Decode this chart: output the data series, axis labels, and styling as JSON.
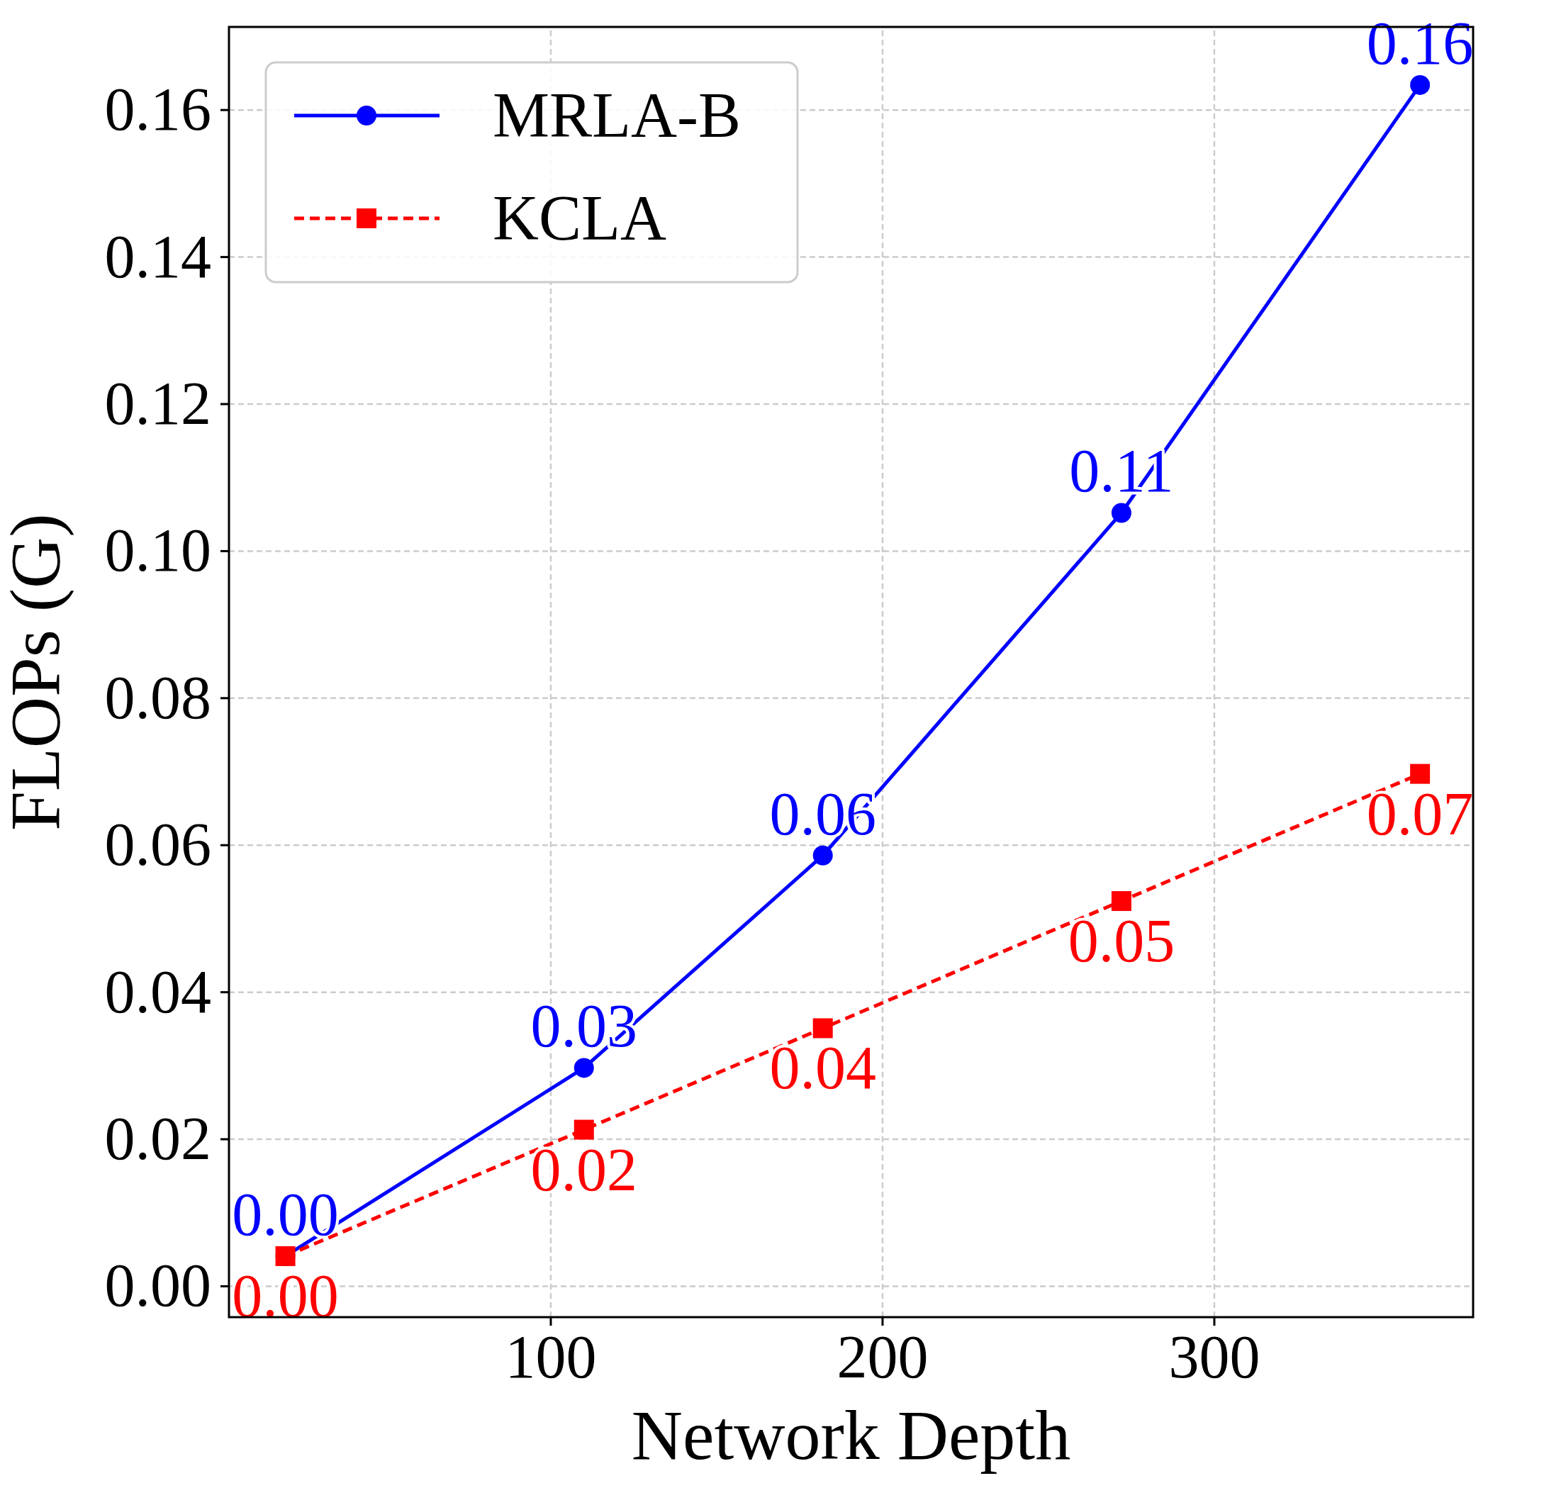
{
  "chart_data": {
    "type": "line",
    "xlabel": "Network Depth",
    "ylabel": "FLOPs (G)",
    "xlim": [
      3,
      378
    ],
    "ylim": [
      -0.0042,
      0.1713
    ],
    "xticks": [
      100,
      200,
      300
    ],
    "yticks": [
      {
        "value": 0,
        "label": "0.00"
      },
      0.02,
      0.04,
      0.06,
      0.08,
      {
        "value": 0.1,
        "label": "0.10"
      },
      0.12,
      0.14,
      0.16
    ],
    "grid": true,
    "legend": "top left",
    "series": [
      {
        "name": "MRLA-B",
        "color": "#0000ff",
        "marker": "circle",
        "line_style": "solid",
        "x": [
          20,
          110,
          182,
          272,
          362
        ],
        "values": [
          0.0041,
          0.0297,
          0.0586,
          0.1052,
          0.1634
        ],
        "value_labels": [
          "0.00",
          "0.03",
          "0.06",
          "0.11",
          "0.16"
        ]
      },
      {
        "name": "KCLA",
        "color": "#ff0000",
        "marker": "square",
        "line_style": "dashed",
        "x": [
          20,
          110,
          182,
          272,
          362
        ],
        "values": [
          0.0041,
          0.0213,
          0.0351,
          0.0524,
          0.0697
        ],
        "value_labels": [
          "0.00",
          "0.02",
          "0.04",
          "0.05",
          "0.07"
        ]
      }
    ]
  }
}
